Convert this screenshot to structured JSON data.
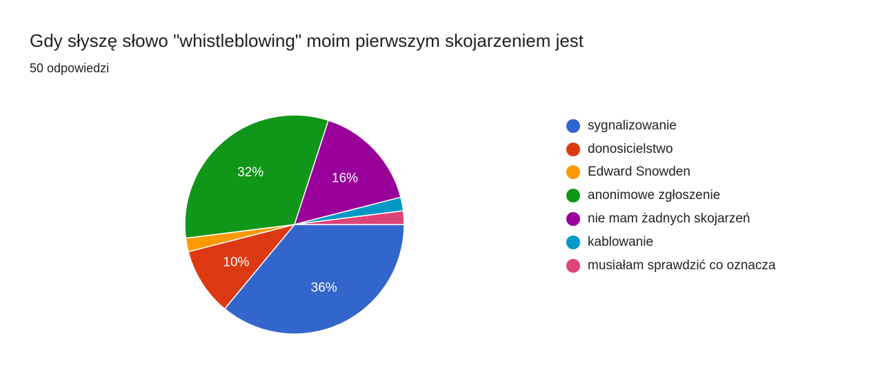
{
  "chart_data": {
    "type": "pie",
    "title": "Gdy słyszę słowo \"whistleblowing\" moim pierwszym skojarzeniem jest",
    "subtitle": "50 odpowiedzi",
    "legend_position": "right",
    "slices": [
      {
        "label": "sygnalizowanie",
        "percent": 36,
        "color": "#3366cc",
        "data_label": "36%"
      },
      {
        "label": "donosicielstwo",
        "percent": 10,
        "color": "#dc3912",
        "data_label": "10%"
      },
      {
        "label": "Edward Snowden",
        "percent": 2,
        "color": "#ff9900",
        "data_label": ""
      },
      {
        "label": "anonimowe zgłoszenie",
        "percent": 32,
        "color": "#109618",
        "data_label": "32%"
      },
      {
        "label": "nie mam żadnych skojarzeń",
        "percent": 16,
        "color": "#990099",
        "data_label": "16%"
      },
      {
        "label": "kablowanie",
        "percent": 2,
        "color": "#0099c6",
        "data_label": ""
      },
      {
        "label": "musiałam sprawdzić co oznacza",
        "percent": 2,
        "color": "#dd4477",
        "data_label": ""
      }
    ]
  }
}
